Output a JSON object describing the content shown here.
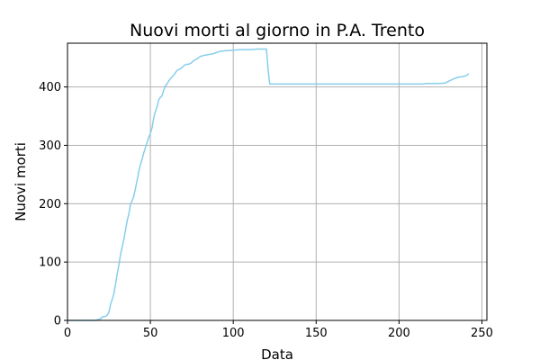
{
  "chart_data": {
    "type": "line",
    "title": "Nuovi morti al giorno in P.A. Trento",
    "xlabel": "Data",
    "ylabel": "Nuovi morti",
    "xlim": [
      0,
      253
    ],
    "ylim": [
      0,
      475
    ],
    "xticks": [
      0,
      50,
      100,
      150,
      200,
      250
    ],
    "yticks": [
      0,
      100,
      200,
      300,
      400
    ],
    "grid": true,
    "series": [
      {
        "color": "#87ceeb",
        "x": [
          0,
          17,
          18,
          20,
          21,
          23,
          24,
          25,
          26,
          27,
          28,
          29,
          30,
          31,
          32,
          33,
          34,
          35,
          36,
          37,
          38,
          39,
          40,
          41,
          42,
          43,
          44,
          45,
          46,
          47,
          48,
          49,
          50,
          51,
          52,
          53,
          54,
          55,
          56,
          57,
          58,
          59,
          60,
          61,
          62,
          63,
          64,
          65,
          66,
          67,
          68,
          69,
          70,
          71,
          72,
          73,
          74,
          75,
          76,
          78,
          80,
          82,
          84,
          86,
          88,
          90,
          92,
          95,
          100,
          105,
          110,
          115,
          120,
          121,
          122,
          130,
          150,
          170,
          190,
          200,
          210,
          215,
          216,
          220,
          225,
          228,
          230,
          233,
          236,
          239,
          241,
          242
        ],
        "y": [
          0,
          0,
          1,
          3,
          6,
          7,
          9,
          14,
          28,
          36,
          46,
          62,
          80,
          95,
          113,
          126,
          139,
          155,
          171,
          182,
          199,
          205,
          213,
          226,
          240,
          255,
          267,
          276,
          287,
          296,
          305,
          314,
          320,
          330,
          347,
          358,
          365,
          378,
          382,
          385,
          394,
          402,
          405,
          410,
          414,
          417,
          420,
          424,
          428,
          430,
          431,
          433,
          436,
          438,
          439,
          439,
          440,
          442,
          445,
          448,
          452,
          454,
          455,
          456,
          457,
          459,
          461,
          462,
          463,
          464,
          464,
          465,
          465,
          430,
          405,
          405,
          405,
          405,
          405,
          405,
          405,
          405,
          406,
          406,
          406,
          407,
          410,
          414,
          417,
          418,
          420,
          423
        ]
      }
    ]
  }
}
